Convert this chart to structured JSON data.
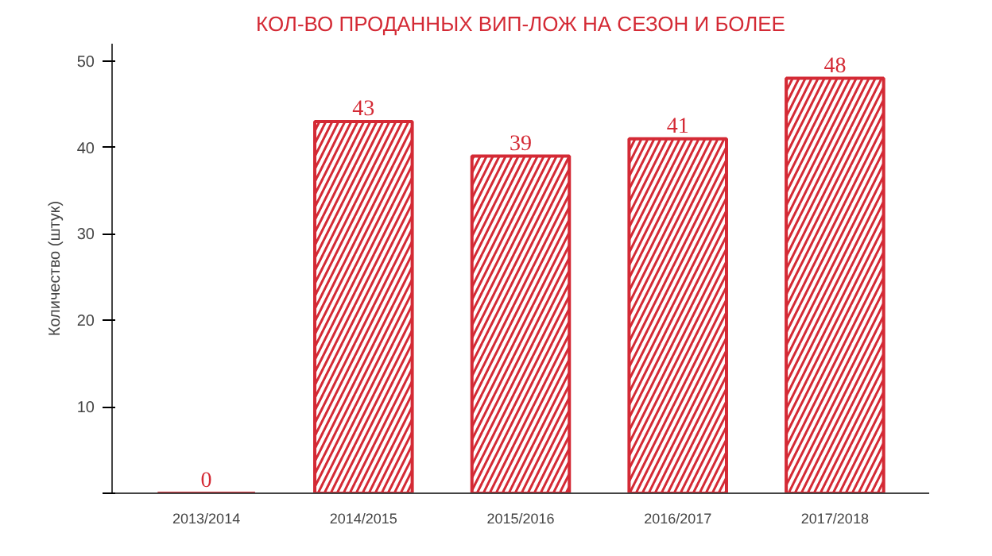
{
  "chart_data": {
    "type": "bar",
    "title": "КОЛ-ВО ПРОДАННЫХ ВИП-ЛОЖ НА СЕЗОН И БОЛЕЕ",
    "ylabel": "Количество (штук)",
    "categories": [
      "2013/2014",
      "2014/2015",
      "2015/2016",
      "2016/2017",
      "2017/2018"
    ],
    "values": [
      0,
      43,
      39,
      41,
      48
    ],
    "color": "#d42a35",
    "ylim": [
      0,
      52
    ],
    "yticks": [
      {
        "value": 0,
        "label": null
      },
      10,
      20,
      30,
      40,
      50
    ],
    "grid": false,
    "data_labels": true
  }
}
